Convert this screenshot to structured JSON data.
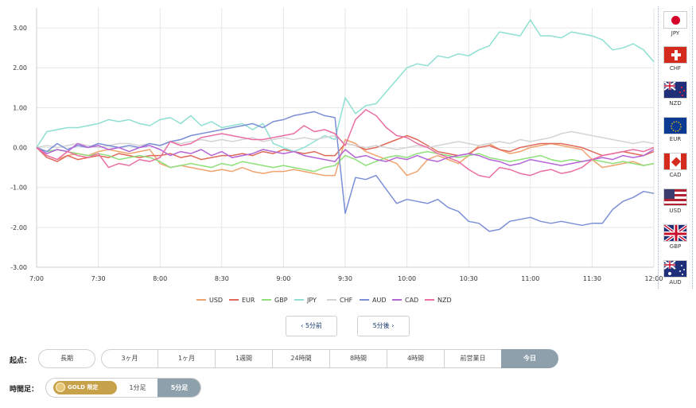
{
  "chart_data": {
    "type": "line",
    "x": [
      "7:00",
      "7:05",
      "7:10",
      "7:15",
      "7:20",
      "7:25",
      "7:30",
      "7:35",
      "7:40",
      "7:45",
      "7:50",
      "7:55",
      "8:00",
      "8:05",
      "8:10",
      "8:15",
      "8:20",
      "8:25",
      "8:30",
      "8:35",
      "8:40",
      "8:45",
      "8:50",
      "8:55",
      "9:00",
      "9:05",
      "9:10",
      "9:15",
      "9:20",
      "9:25",
      "9:30",
      "9:35",
      "9:40",
      "9:45",
      "9:50",
      "9:55",
      "10:00",
      "10:05",
      "10:10",
      "10:15",
      "10:20",
      "10:25",
      "10:30",
      "10:35",
      "10:40",
      "10:45",
      "10:50",
      "10:55",
      "11:00",
      "11:05",
      "11:10",
      "11:15",
      "11:20",
      "11:25",
      "11:30",
      "11:35",
      "11:40",
      "11:45",
      "11:50",
      "11:55",
      "12:00"
    ],
    "x_ticks": [
      "7:00",
      "7:30",
      "8:00",
      "8:30",
      "9:00",
      "9:30",
      "10:00",
      "10:30",
      "11:00",
      "11:30",
      "12:00"
    ],
    "ylim": [
      -3.0,
      3.5
    ],
    "y_ticks": [
      "3.00",
      "2.00",
      "1.00",
      "0.00",
      "-1.00",
      "-2.00",
      "-3.00"
    ],
    "grid": true,
    "legend_position": "bottom",
    "series": [
      {
        "name": "USD",
        "color": "#f0a36e",
        "values": [
          0.0,
          -0.2,
          -0.3,
          -0.2,
          -0.15,
          -0.2,
          -0.1,
          -0.05,
          -0.1,
          -0.15,
          -0.1,
          -0.05,
          -0.4,
          -0.5,
          -0.45,
          -0.5,
          -0.55,
          -0.6,
          -0.55,
          -0.6,
          -0.5,
          -0.6,
          -0.65,
          -0.6,
          -0.6,
          -0.55,
          -0.6,
          -0.65,
          -0.7,
          -0.7,
          0.2,
          0.1,
          -0.1,
          -0.2,
          -0.3,
          -0.4,
          -0.7,
          -0.6,
          -0.3,
          -0.2,
          -0.3,
          -0.4,
          -0.2,
          0.05,
          0.1,
          -0.05,
          -0.15,
          -0.1,
          0.0,
          0.05,
          0.1,
          0.05,
          0.0,
          -0.05,
          -0.3,
          -0.5,
          -0.45,
          -0.4,
          -0.35,
          -0.45,
          -0.4
        ]
      },
      {
        "name": "EUR",
        "color": "#e06a5a",
        "values": [
          0.0,
          -0.25,
          -0.35,
          -0.2,
          -0.3,
          -0.25,
          -0.2,
          -0.25,
          -0.15,
          -0.2,
          -0.25,
          -0.2,
          -0.2,
          -0.15,
          -0.25,
          -0.2,
          -0.3,
          -0.25,
          -0.2,
          -0.2,
          -0.15,
          -0.2,
          -0.1,
          -0.15,
          -0.05,
          -0.1,
          -0.15,
          -0.1,
          -0.2,
          -0.2,
          0.1,
          0.05,
          -0.05,
          0.0,
          0.1,
          0.2,
          0.3,
          0.2,
          0.05,
          -0.1,
          -0.15,
          -0.2,
          -0.15,
          0.0,
          0.05,
          -0.05,
          -0.1,
          0.0,
          0.05,
          0.1,
          0.1,
          0.1,
          0.05,
          0.0,
          -0.1,
          -0.2,
          -0.15,
          -0.1,
          -0.15,
          -0.2,
          -0.1
        ]
      },
      {
        "name": "GBP",
        "color": "#8fe07a",
        "values": [
          0.0,
          -0.1,
          -0.05,
          -0.1,
          -0.15,
          -0.2,
          -0.15,
          -0.2,
          -0.3,
          -0.25,
          -0.2,
          -0.25,
          -0.35,
          -0.5,
          -0.45,
          -0.4,
          -0.45,
          -0.5,
          -0.4,
          -0.45,
          -0.35,
          -0.4,
          -0.45,
          -0.5,
          -0.45,
          -0.5,
          -0.55,
          -0.6,
          -0.5,
          -0.45,
          -0.2,
          -0.3,
          -0.45,
          -0.35,
          -0.25,
          -0.2,
          -0.25,
          -0.15,
          -0.1,
          -0.15,
          -0.2,
          -0.25,
          -0.2,
          -0.15,
          -0.25,
          -0.3,
          -0.35,
          -0.3,
          -0.25,
          -0.2,
          -0.3,
          -0.35,
          -0.3,
          -0.35,
          -0.3,
          -0.35,
          -0.4,
          -0.35,
          -0.4,
          -0.45,
          -0.4
        ]
      },
      {
        "name": "JPY",
        "color": "#8ee0d2",
        "values": [
          0.0,
          0.4,
          0.45,
          0.5,
          0.5,
          0.55,
          0.6,
          0.7,
          0.65,
          0.7,
          0.6,
          0.55,
          0.7,
          0.75,
          0.6,
          0.8,
          0.55,
          0.65,
          0.5,
          0.55,
          0.6,
          0.45,
          0.6,
          0.1,
          0.0,
          -0.1,
          0.0,
          0.15,
          0.3,
          0.2,
          1.25,
          0.85,
          1.05,
          1.1,
          1.4,
          1.7,
          2.0,
          2.1,
          2.05,
          2.3,
          2.25,
          2.35,
          2.3,
          2.45,
          2.55,
          2.9,
          2.85,
          2.8,
          3.2,
          2.8,
          2.8,
          2.75,
          2.9,
          2.85,
          2.8,
          2.7,
          2.45,
          2.5,
          2.6,
          2.45,
          2.15
        ]
      },
      {
        "name": "CHF",
        "color": "#d4d4d4",
        "values": [
          0.0,
          0.05,
          0.0,
          0.05,
          0.1,
          0.05,
          0.0,
          0.05,
          0.1,
          0.1,
          0.05,
          0.1,
          0.05,
          0.15,
          0.1,
          0.15,
          0.2,
          0.15,
          0.2,
          0.15,
          0.2,
          0.25,
          0.15,
          0.2,
          0.25,
          0.2,
          0.25,
          0.2,
          0.25,
          0.3,
          0.1,
          0.05,
          0.0,
          0.05,
          0.0,
          -0.05,
          0.0,
          0.05,
          0.0,
          0.05,
          0.1,
          0.15,
          0.1,
          0.05,
          0.1,
          0.15,
          0.1,
          0.2,
          0.15,
          0.2,
          0.25,
          0.35,
          0.4,
          0.35,
          0.3,
          0.25,
          0.2,
          0.15,
          0.1,
          0.15,
          0.1
        ]
      },
      {
        "name": "AUD",
        "color": "#7b8fd6",
        "values": [
          0.0,
          -0.1,
          0.1,
          -0.05,
          0.05,
          0.0,
          0.1,
          0.05,
          0.0,
          0.05,
          0.0,
          0.1,
          0.05,
          0.15,
          0.2,
          0.3,
          0.35,
          0.4,
          0.45,
          0.5,
          0.55,
          0.6,
          0.5,
          0.65,
          0.7,
          0.8,
          0.85,
          0.9,
          0.8,
          0.75,
          -1.65,
          -0.75,
          -0.8,
          -0.7,
          -1.05,
          -1.4,
          -1.3,
          -1.35,
          -1.4,
          -1.3,
          -1.5,
          -1.6,
          -1.85,
          -1.9,
          -2.1,
          -2.05,
          -1.85,
          -1.8,
          -1.75,
          -1.85,
          -1.9,
          -1.85,
          -1.9,
          -1.95,
          -1.9,
          -1.9,
          -1.55,
          -1.35,
          -1.25,
          -1.1,
          -1.15
        ]
      },
      {
        "name": "CAD",
        "color": "#b566d6",
        "values": [
          0.0,
          -0.15,
          -0.05,
          -0.1,
          0.1,
          0.0,
          0.05,
          -0.05,
          0.0,
          -0.1,
          0.0,
          0.05,
          -0.05,
          -0.2,
          -0.1,
          -0.15,
          -0.05,
          -0.2,
          -0.1,
          -0.25,
          -0.2,
          -0.15,
          -0.05,
          -0.1,
          -0.15,
          -0.1,
          -0.2,
          -0.25,
          -0.3,
          -0.35,
          -0.05,
          -0.25,
          -0.2,
          -0.3,
          -0.35,
          -0.25,
          -0.3,
          -0.2,
          -0.3,
          -0.35,
          -0.25,
          -0.2,
          -0.15,
          -0.2,
          -0.3,
          -0.35,
          -0.45,
          -0.4,
          -0.3,
          -0.35,
          -0.4,
          -0.45,
          -0.4,
          -0.35,
          -0.3,
          -0.25,
          -0.3,
          -0.2,
          -0.25,
          -0.2,
          -0.05
        ]
      },
      {
        "name": "NZD",
        "color": "#ea6fa2",
        "values": [
          0.0,
          -0.2,
          -0.3,
          -0.1,
          -0.2,
          -0.25,
          -0.15,
          -0.5,
          -0.4,
          -0.45,
          -0.3,
          -0.35,
          -0.25,
          0.15,
          0.05,
          0.1,
          0.25,
          0.3,
          0.35,
          0.3,
          0.25,
          0.2,
          0.2,
          0.25,
          0.3,
          0.35,
          0.55,
          0.4,
          0.45,
          0.35,
          0.05,
          0.7,
          0.95,
          0.8,
          0.5,
          0.3,
          0.25,
          0.1,
          0.0,
          -0.15,
          -0.25,
          -0.35,
          -0.55,
          -0.7,
          -0.75,
          -0.5,
          -0.55,
          -0.65,
          -0.7,
          -0.6,
          -0.55,
          -0.65,
          -0.6,
          -0.5,
          -0.3,
          -0.2,
          -0.15,
          -0.1,
          -0.05,
          -0.1,
          0.0
        ]
      }
    ]
  },
  "currencies": [
    {
      "code": "JPY"
    },
    {
      "code": "CHF"
    },
    {
      "code": "NZD"
    },
    {
      "code": "EUR"
    },
    {
      "code": "CAD"
    },
    {
      "code": "USD"
    },
    {
      "code": "GBP"
    },
    {
      "code": "AUD"
    }
  ],
  "nav": {
    "prev_label": "5分前",
    "next_label": "5分後"
  },
  "range": {
    "label": "起点：",
    "options": [
      "長期",
      "3ヶ月",
      "1ヶ月",
      "1週間",
      "24時間",
      "8時間",
      "4時間",
      "前営業日",
      "今日"
    ],
    "selected": "今日"
  },
  "timeframe": {
    "label": "時間足：",
    "gold_text": "GOLD 限定",
    "options": [
      "1分足",
      "5分足"
    ],
    "selected": "5分足"
  }
}
